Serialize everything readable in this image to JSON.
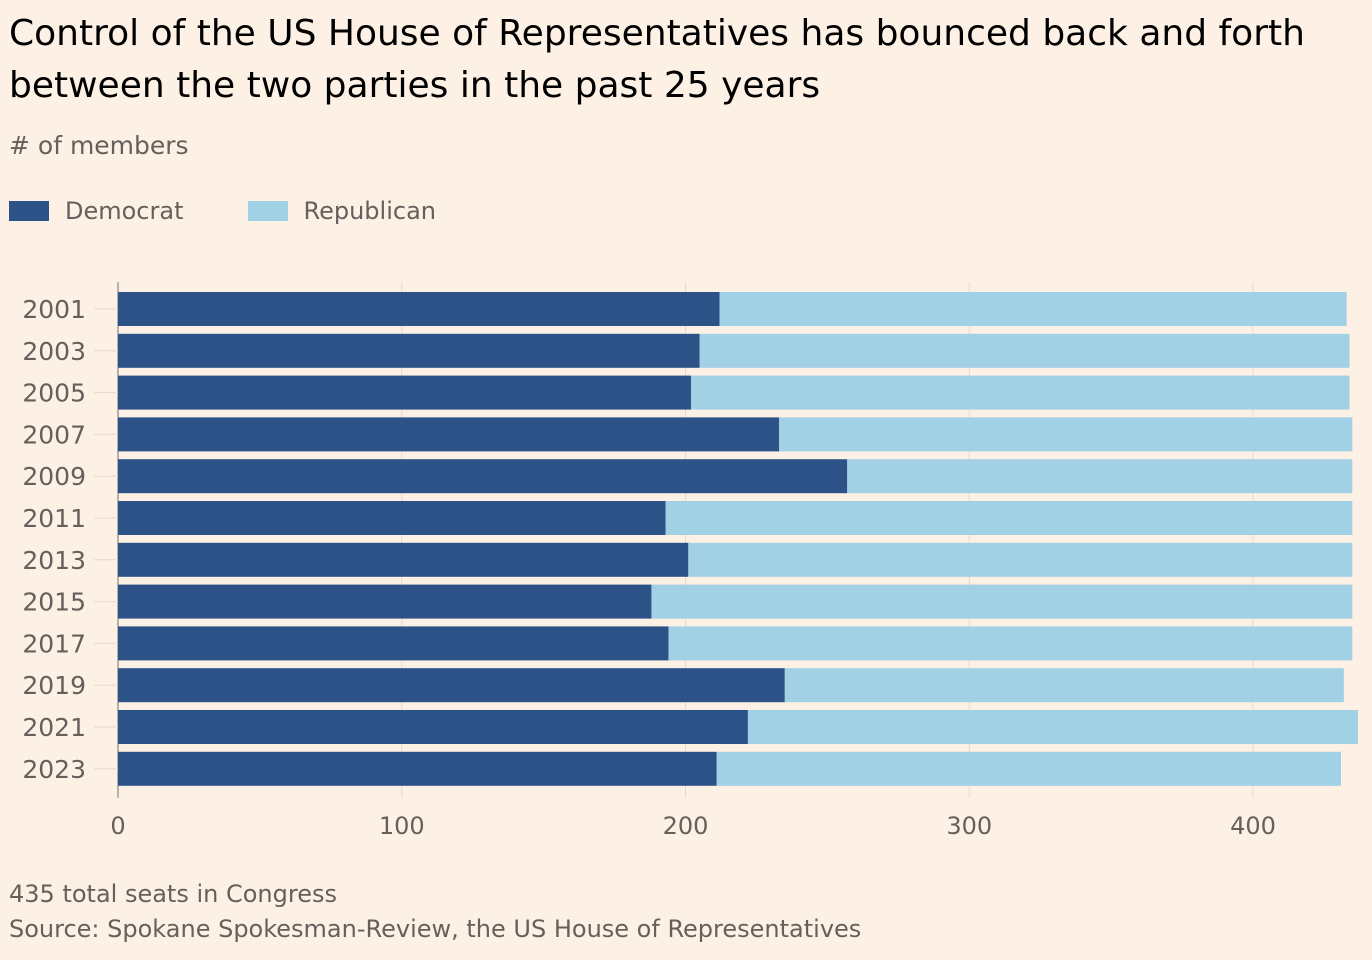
{
  "title": "Control of the US House of Representatives has bounced back and forth between the two parties in the past 25 years",
  "subtitle": "# of members",
  "legend": [
    {
      "label": "Democrat",
      "color": "#2C5288"
    },
    {
      "label": "Republican",
      "color": "#A2D0E4"
    }
  ],
  "note": "435 total seats in Congress",
  "source": "Source: Spokane Spokesman-Review, the US House of Representatives",
  "colors": {
    "background": "#FDF1E5",
    "democrat": "#2C5288",
    "republican": "#A2D0E4",
    "gridline": "#E6D9CE",
    "tick_text": "#66605C"
  },
  "chart_data": {
    "type": "bar",
    "orientation": "horizontal",
    "stacked": true,
    "categories": [
      "2001",
      "2003",
      "2005",
      "2007",
      "2009",
      "2011",
      "2013",
      "2015",
      "2017",
      "2019",
      "2021",
      "2023"
    ],
    "series": [
      {
        "name": "Democrat",
        "values": [
          212,
          205,
          202,
          233,
          257,
          193,
          201,
          188,
          194,
          235,
          222,
          211
        ]
      },
      {
        "name": "Republican",
        "values": [
          221,
          229,
          232,
          202,
          178,
          242,
          234,
          247,
          241,
          197,
          215,
          220
        ]
      }
    ],
    "x_ticks": [
      0,
      100,
      200,
      300,
      400
    ],
    "xlim": [
      0,
      437
    ],
    "xlabel": "",
    "ylabel": "",
    "grid": "vertical"
  }
}
